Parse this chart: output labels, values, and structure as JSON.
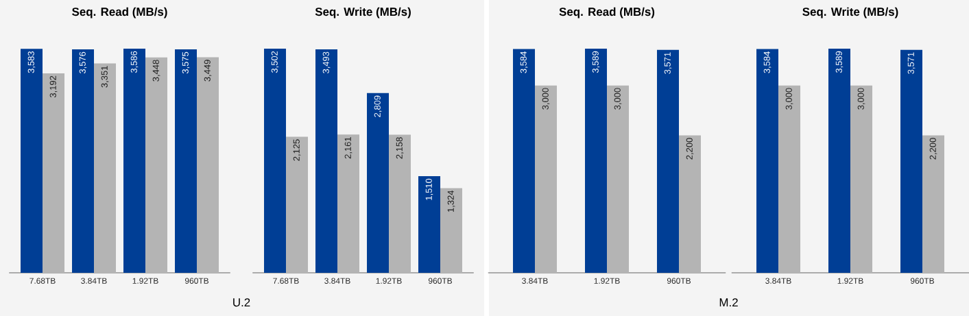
{
  "chart_data": [
    {
      "type": "bar",
      "title": "Seq. Read (MB/s)",
      "xlabel": "U.2",
      "categories": [
        "7.68TB",
        "3.84TB",
        "1.92TB",
        "960TB"
      ],
      "series": [
        {
          "color": "#003e95",
          "values": [
            3583,
            3576,
            3586,
            3575
          ],
          "value_labels": [
            "3,583",
            "3,576",
            "3,586",
            "3,575"
          ]
        },
        {
          "color": "#b4b4b4",
          "values": [
            3192,
            3351,
            3448,
            3449
          ],
          "value_labels": [
            "3,192",
            "3,351",
            "3,448",
            "3,449"
          ]
        }
      ]
    },
    {
      "type": "bar",
      "title": "Seq. Write (MB/s)",
      "categories": [
        "7.68TB",
        "3.84TB",
        "1.92TB",
        "960TB"
      ],
      "series": [
        {
          "color": "#003e95",
          "values": [
            3502,
            3493,
            2809,
            1510
          ],
          "value_labels": [
            "3,502",
            "3,493",
            "2,809",
            "1,510"
          ]
        },
        {
          "color": "#b4b4b4",
          "values": [
            2125,
            2161,
            2158,
            1324
          ],
          "value_labels": [
            "2,125",
            "2,161",
            "2,158",
            "1,324"
          ]
        }
      ]
    },
    {
      "type": "bar",
      "title": "Seq. Read (MB/s)",
      "xlabel": "M.2",
      "categories": [
        "3.84TB",
        "1.92TB",
        "960TB"
      ],
      "series": [
        {
          "color": "#003e95",
          "values": [
            3584,
            3589,
            3571
          ],
          "value_labels": [
            "3,584",
            "3,589",
            "3,571"
          ]
        },
        {
          "color": "#b4b4b4",
          "values": [
            3000,
            3000,
            2200
          ],
          "value_labels": [
            "3,000",
            "3,000",
            "2,200"
          ]
        }
      ]
    },
    {
      "type": "bar",
      "title": "Seq. Write (MB/s)",
      "categories": [
        "3.84TB",
        "1.92TB",
        "960TB"
      ],
      "series": [
        {
          "color": "#003e95",
          "values": [
            3584,
            3589,
            3571
          ],
          "value_labels": [
            "3,584",
            "3,589",
            "3,571"
          ]
        },
        {
          "color": "#b4b4b4",
          "values": [
            3000,
            3000,
            2200
          ],
          "value_labels": [
            "3,000",
            "3,000",
            "2,200"
          ]
        }
      ]
    }
  ]
}
